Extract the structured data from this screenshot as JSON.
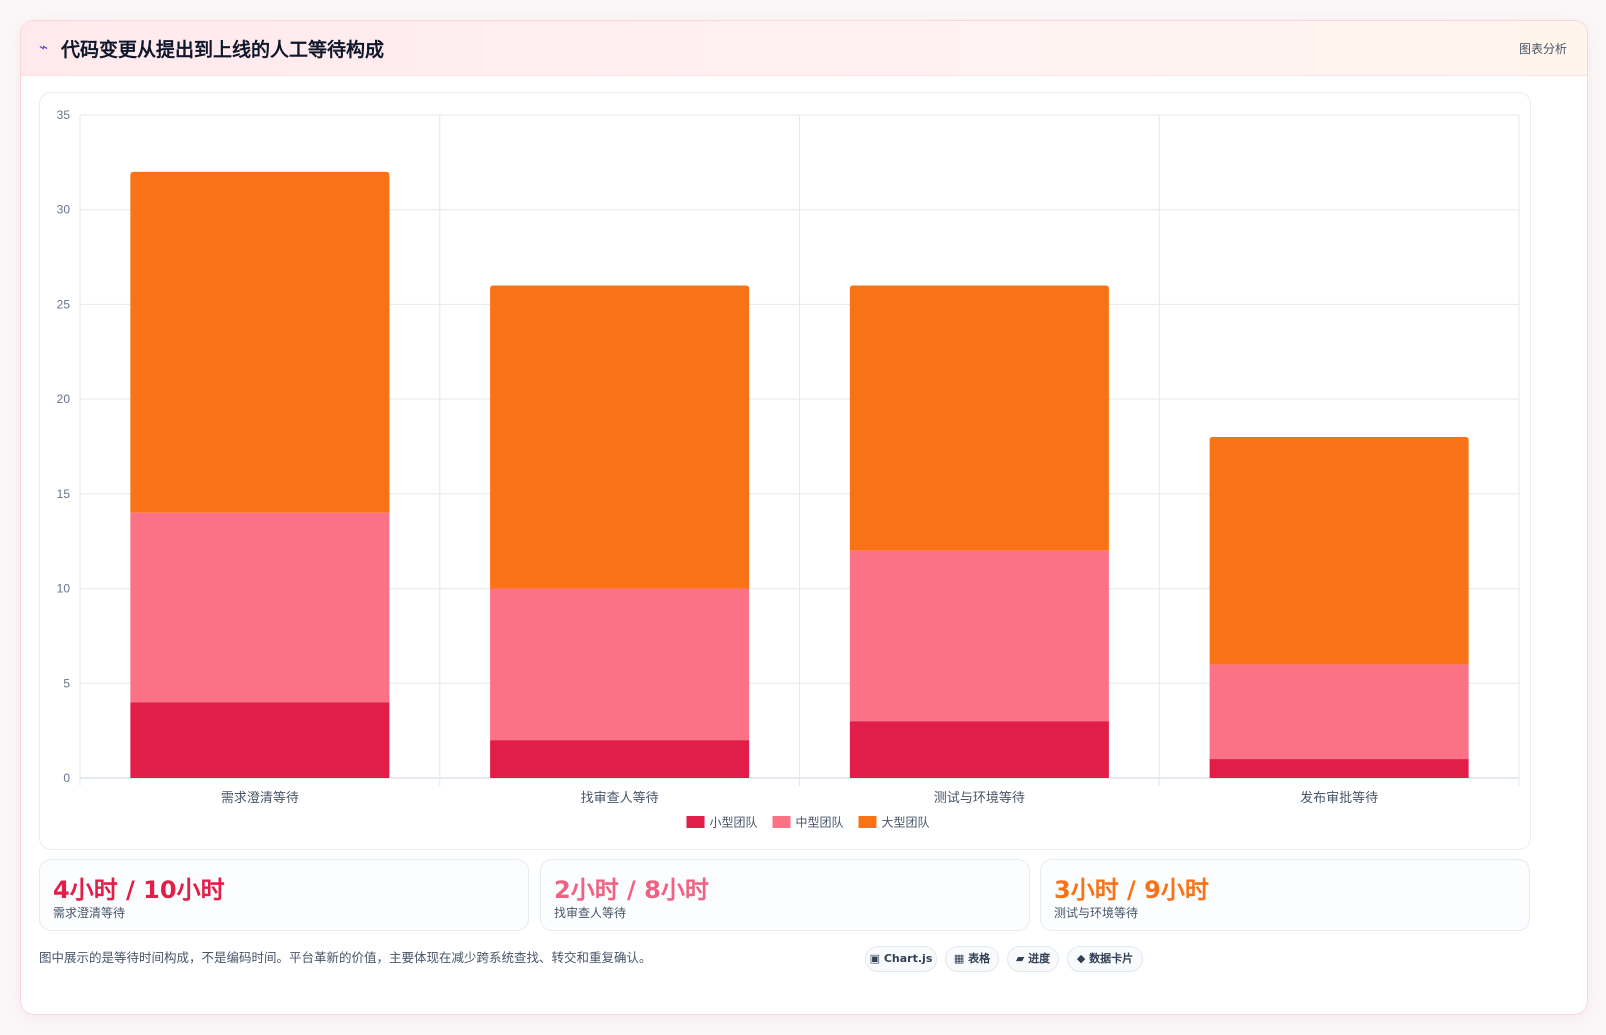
{
  "header": {
    "icon": "lightning-icon",
    "title": "代码变更从提出到上线的人工等待构成",
    "tag": "图表分析"
  },
  "chart_data": {
    "type": "bar",
    "stacked": true,
    "title": "",
    "xlabel": "",
    "ylabel": "",
    "categories": [
      "需求澄清等待",
      "找审查人等待",
      "测试与环境等待",
      "发布审批等待"
    ],
    "series": [
      {
        "name": "小型团队",
        "color": "#e11d48",
        "values": [
          4,
          2,
          3,
          1
        ]
      },
      {
        "name": "中型团队",
        "color": "#fb7185",
        "values": [
          10,
          8,
          9,
          5
        ]
      },
      {
        "name": "大型团队",
        "color": "#f97316",
        "values": [
          18,
          16,
          14,
          12
        ]
      }
    ],
    "ylim": [
      0,
      35
    ],
    "yticks": [
      0,
      5,
      10,
      15,
      20,
      25,
      30,
      35
    ],
    "grid": true,
    "legend": "bottom"
  },
  "stats": [
    {
      "value": "4小时 / 10小时",
      "label": "需求澄清等待",
      "color": "#e11d48"
    },
    {
      "value": "2小时 / 8小时",
      "label": "找审查人等待",
      "color": "#f06182"
    },
    {
      "value": "3小时 / 9小时",
      "label": "测试与环境等待",
      "color": "#f97316"
    }
  ],
  "footnote": "图中展示的是等待时间构成，不是编码时间。平台革新的价值，主要体现在减少跨系统查找、转交和重复确认。",
  "pills": [
    {
      "icon": "chart-icon",
      "glyph": "▣",
      "label": "Chart.js"
    },
    {
      "icon": "table-icon",
      "glyph": "▦",
      "label": "表格"
    },
    {
      "icon": "progress-icon",
      "glyph": "▰",
      "label": "进度"
    },
    {
      "icon": "data-card-icon",
      "glyph": "◆",
      "label": "数据卡片"
    }
  ]
}
